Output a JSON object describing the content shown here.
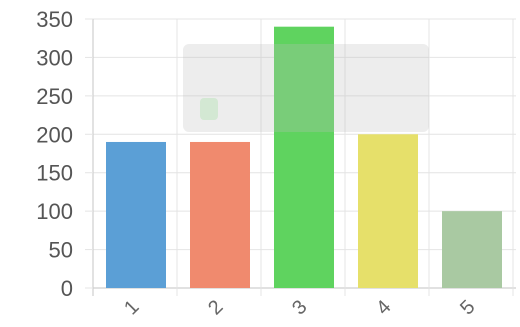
{
  "chart_data": {
    "type": "bar",
    "categories": [
      "1",
      "2",
      "3",
      "4",
      "5"
    ],
    "values": [
      190,
      190,
      340,
      200,
      100
    ],
    "colors": [
      "#5b9fd6",
      "#f08a6e",
      "#5fd35f",
      "#e6e06a",
      "#a9c9a2"
    ],
    "title": "",
    "xlabel": "",
    "ylabel": "",
    "ylim": [
      0,
      350
    ],
    "yticks": [
      0,
      50,
      100,
      150,
      200,
      250,
      300,
      350
    ],
    "grid": true,
    "legend": "none",
    "tooltip_overlay": true
  }
}
